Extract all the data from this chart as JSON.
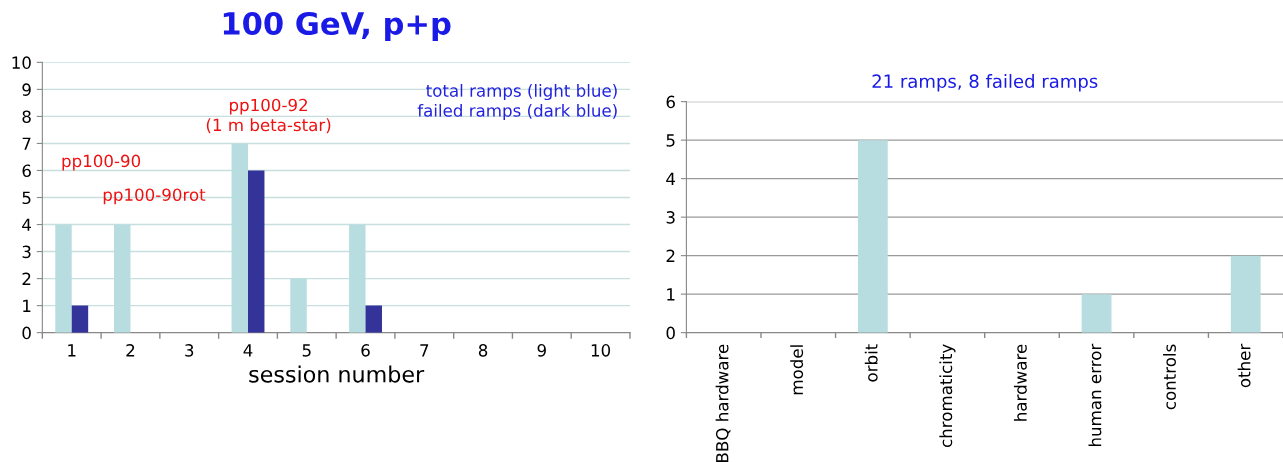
{
  "chart_data": [
    {
      "type": "bar",
      "title": "100 GeV, p+p",
      "xlabel": "session number",
      "categories": [
        "1",
        "2",
        "3",
        "4",
        "5",
        "6",
        "7",
        "8",
        "9",
        "10"
      ],
      "series": [
        {
          "color": "#b7dde0",
          "values": [
            4,
            4,
            0,
            7,
            2,
            4,
            0,
            0,
            0,
            0
          ]
        },
        {
          "color": "#333399",
          "values": [
            1,
            0,
            0,
            6,
            0,
            1,
            0,
            0,
            0,
            0
          ]
        }
      ],
      "ylim": [
        0,
        10
      ],
      "yticks": [
        0,
        1,
        2,
        3,
        4,
        5,
        6,
        7,
        8,
        9,
        10
      ],
      "grid": "y",
      "annotations": [
        "pp100-90",
        "pp100-90rot",
        "pp100-92\n(1 m beta-star)",
        "total ramps (light blue)\nfailed ramps (dark blue)"
      ]
    },
    {
      "type": "bar",
      "title": "21 ramps, 8 failed ramps",
      "categories": [
        "BBQ hardware",
        "model",
        "orbit",
        "chromaticity",
        "hardware",
        "human error",
        "controls",
        "other"
      ],
      "series": [
        {
          "color": "#b7dde0",
          "values": [
            0,
            0,
            5,
            0,
            0,
            1,
            0,
            2
          ]
        }
      ],
      "ylim": [
        0,
        6
      ],
      "yticks": [
        0,
        1,
        2,
        3,
        4,
        5,
        6
      ],
      "grid": "y"
    }
  ]
}
